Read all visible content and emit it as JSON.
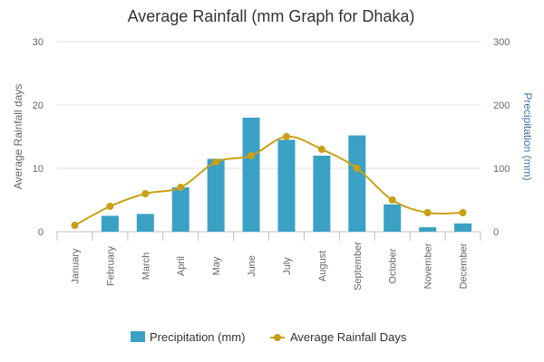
{
  "chart_data": {
    "type": "bar",
    "title": "Average Rainfall (mm Graph for Dhaka)",
    "categories": [
      "January",
      "February",
      "March",
      "April",
      "May",
      "June",
      "July",
      "August",
      "September",
      "October",
      "November",
      "December"
    ],
    "series": [
      {
        "name": "Precipitation (mm)",
        "type": "bar",
        "axis": "right",
        "color": "#3BA1C4",
        "values": [
          0,
          25,
          28,
          70,
          115,
          180,
          145,
          120,
          152,
          43,
          7,
          13
        ]
      },
      {
        "name": "Average Rainfall Days",
        "type": "line",
        "smooth": true,
        "axis": "left",
        "color": "#C9A015",
        "values": [
          1,
          4,
          6,
          7,
          11,
          12,
          15,
          13,
          10,
          5,
          3,
          3
        ]
      }
    ],
    "y_left": {
      "label": "Average Rainfall days",
      "range": [
        0,
        30
      ],
      "ticks": [
        "0",
        "10",
        "20",
        "30"
      ]
    },
    "y_right": {
      "label": "Precipitation (mm)",
      "range": [
        0,
        300
      ],
      "ticks": [
        "0",
        "100",
        "200",
        "300"
      ]
    },
    "grid": true,
    "legend": {
      "position": "bottom-center"
    }
  }
}
